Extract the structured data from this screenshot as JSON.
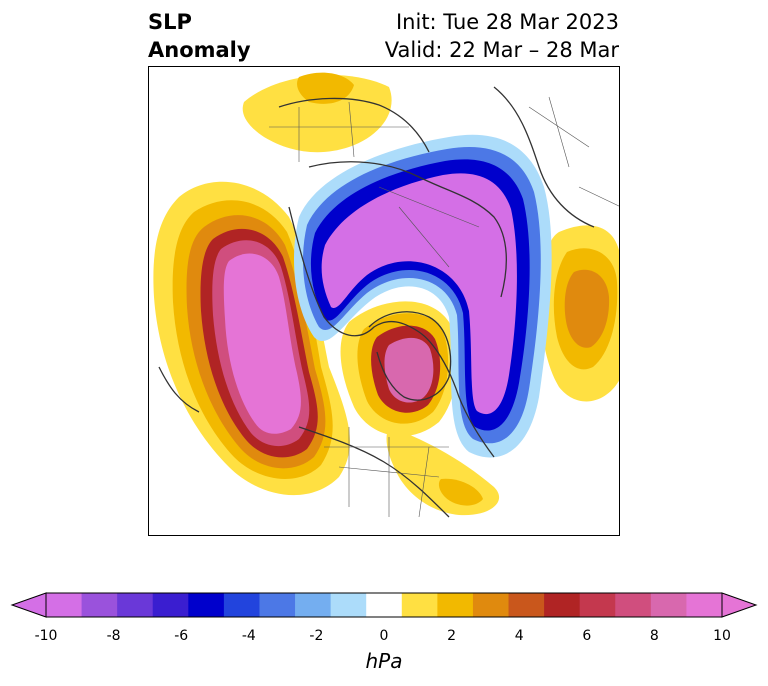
{
  "header": {
    "title_line1": "SLP",
    "title_line2": "Anomaly",
    "init": "Init: Tue 28 Mar 2023",
    "valid": "Valid: 22 Mar – 28 Mar"
  },
  "colorbar": {
    "units": "hPa",
    "ticks": [
      "-10",
      "-8",
      "-6",
      "-4",
      "-2",
      "0",
      "2",
      "4",
      "6",
      "8",
      "10"
    ],
    "colors": [
      "#d46fe6",
      "#9a52dc",
      "#6a38d8",
      "#3a1ed0",
      "#0000cc",
      "#2244dd",
      "#4c78e6",
      "#74aef0",
      "#acdcfa",
      "#ffffff",
      "#ffe042",
      "#f2b900",
      "#e08a0e",
      "#c9571c",
      "#b02424",
      "#c4384e",
      "#d04e7e",
      "#d868ae",
      "#e574d6"
    ],
    "extend_low_color": "#d46fe6",
    "extend_high_color": "#e574d6"
  },
  "map": {
    "projection": "north-polar stereographic",
    "field": "sea level pressure anomaly"
  }
}
